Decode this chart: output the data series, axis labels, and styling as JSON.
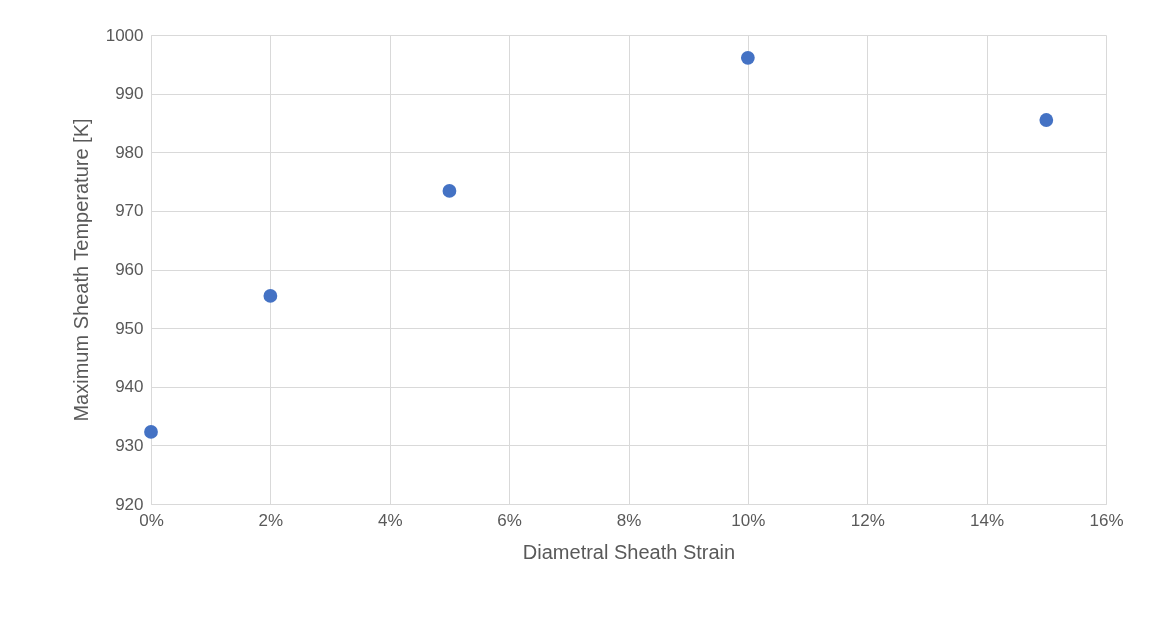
{
  "chart_data": {
    "type": "scatter",
    "xlabel": "Diametral Sheath Strain",
    "ylabel": "Maximum Sheath Temperature [K]",
    "x": [
      0,
      2,
      5,
      10,
      15
    ],
    "series": [
      {
        "color": "#4472c4",
        "values": [
          932.3,
          955.5,
          973.4,
          996.1,
          985.5
        ]
      }
    ],
    "xlim": [
      0,
      16
    ],
    "xticks": [
      {
        "value": 0,
        "label": "0%"
      },
      {
        "value": 2,
        "label": "2%"
      },
      {
        "value": 4,
        "label": "4%"
      },
      {
        "value": 6,
        "label": "6%"
      },
      {
        "value": 8,
        "label": "8%"
      },
      {
        "value": 10,
        "label": "10%"
      },
      {
        "value": 12,
        "label": "12%"
      },
      {
        "value": 14,
        "label": "14%"
      },
      {
        "value": 16,
        "label": "16%"
      }
    ],
    "ylim": [
      920,
      1000
    ],
    "yticks": [
      920,
      930,
      940,
      950,
      960,
      970,
      980,
      990,
      1000
    ],
    "grid": true,
    "marker": "circle"
  }
}
